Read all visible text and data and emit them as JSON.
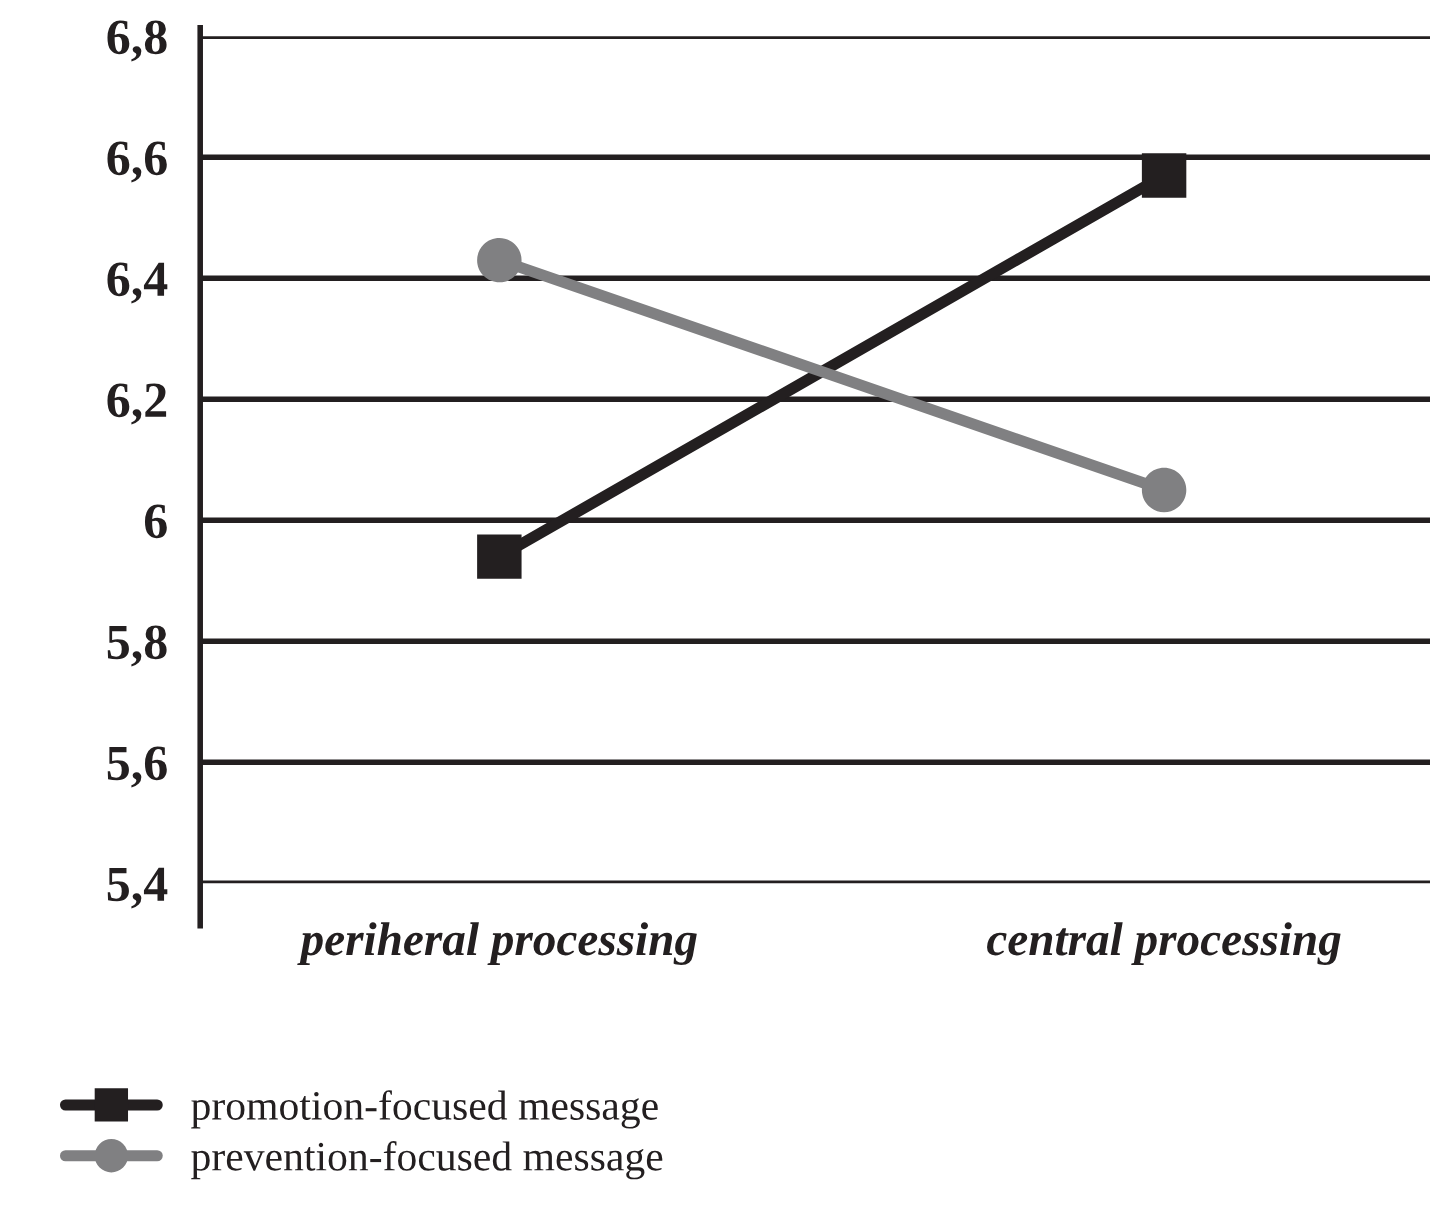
{
  "chart_data": {
    "type": "line",
    "categories": [
      "periheral processing",
      "central processing"
    ],
    "series": [
      {
        "name": "promotion-focused message",
        "color": "#231f20",
        "values": [
          5.94,
          6.57
        ],
        "marker": "square"
      },
      {
        "name": "prevention-focused message",
        "color": "#808082",
        "values": [
          6.43,
          6.05
        ],
        "marker": "circle"
      }
    ],
    "ylim": [
      5.4,
      6.8
    ],
    "yticks": [
      {
        "value": 5.4,
        "label": "5,4"
      },
      {
        "value": 5.6,
        "label": "5,6"
      },
      {
        "value": 5.8,
        "label": "5,8"
      },
      {
        "value": 6.0,
        "label": "6"
      },
      {
        "value": 6.2,
        "label": "6,2"
      },
      {
        "value": 6.4,
        "label": "6,4"
      },
      {
        "value": 6.6,
        "label": "6,6"
      },
      {
        "value": 6.8,
        "label": "6,8"
      }
    ],
    "grid": "y",
    "legend": "bottom left",
    "line_style": "solid"
  }
}
